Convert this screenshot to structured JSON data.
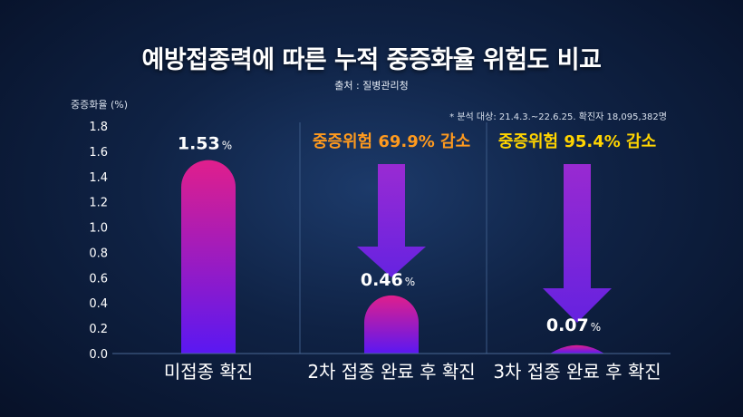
{
  "chart_data": {
    "type": "bar",
    "title": "예방접종력에 따른 누적 중증화율 위험도 비교",
    "source": "출처 : 질병관리청",
    "note": "* 분석 대상: 21.4.3.~22.6.25. 확진자 18,095,382명",
    "ylabel": "중증화율 (%)",
    "ylim": [
      0,
      1.8
    ],
    "yticks": [
      "0.0",
      "0.2",
      "0.4",
      "0.6",
      "0.8",
      "1.0",
      "1.2",
      "1.4",
      "1.6",
      "1.8"
    ],
    "grid": false,
    "categories": [
      "미접종 확진",
      "2차 접종 완료 후 확진",
      "3차 접종 완료 후 확진"
    ],
    "values": [
      1.53,
      0.46,
      0.07
    ],
    "value_labels": [
      "1.53",
      "0.46",
      "0.07"
    ],
    "value_unit": "%",
    "annotations": [
      {
        "category": "2차 접종 완료 후 확진",
        "text": "중증위험 69.9% 감소",
        "color": "#ff9a1e"
      },
      {
        "category": "3차 접종 완료 후 확진",
        "text": "중증위험 95.4% 감소",
        "color": "#ffd400"
      }
    ],
    "colors": {
      "bar_top": "#e01f8c",
      "bar_bottom": "#5a18f2",
      "arrow": "#8a2be2"
    }
  }
}
